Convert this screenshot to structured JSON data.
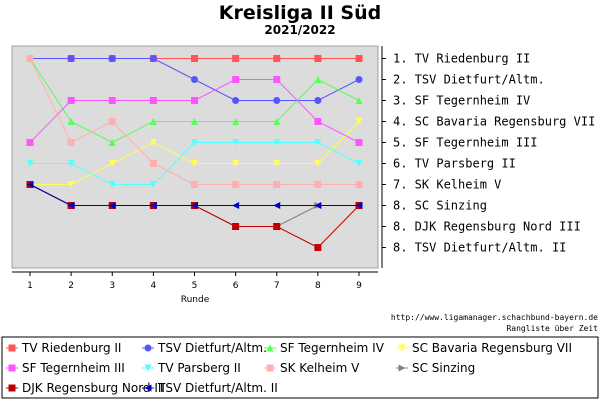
{
  "chart_data": {
    "type": "line",
    "title": "Kreisliga II Süd",
    "subtitle": "2021/2022",
    "xlabel": "Runde",
    "ylabel": "",
    "x": [
      1,
      2,
      3,
      4,
      5,
      6,
      7,
      8,
      9
    ],
    "ylim": [
      1,
      10
    ],
    "y_inverted": true,
    "grid": false,
    "legend_position": "bottom",
    "standings": [
      "1. TV Riedenburg II",
      "2. TSV Dietfurt/Altm.",
      "3. SF Tegernheim IV",
      "4. SC Bavaria Regensburg VII",
      "5. SF Tegernheim III",
      "6. TV Parsberg II",
      "7. SK Kelheim V",
      "8. SC Sinzing",
      "8. DJK Regensburg Nord III",
      "8. TSV Dietfurt/Altm. II"
    ],
    "series": [
      {
        "name": "TV Riedenburg II",
        "color": "#ff5555",
        "marker": "square",
        "values": [
          1,
          1,
          1,
          1,
          1,
          1,
          1,
          1,
          1
        ]
      },
      {
        "name": "TSV Dietfurt/Altm.",
        "color": "#5555ff",
        "marker": "circle",
        "values": [
          1,
          1,
          1,
          1,
          2,
          3,
          3,
          3,
          2
        ]
      },
      {
        "name": "SF Tegernheim IV",
        "color": "#55ff55",
        "marker": "triangle-up",
        "values": [
          1,
          4,
          5,
          4,
          4,
          4,
          4,
          2,
          3
        ]
      },
      {
        "name": "SC Bavaria Regensburg VII",
        "color": "#ffff55",
        "marker": "triangle-down",
        "values": [
          7,
          7,
          6,
          5,
          6,
          6,
          6,
          6,
          4
        ]
      },
      {
        "name": "SF Tegernheim III",
        "color": "#ff55ff",
        "marker": "square",
        "values": [
          5,
          3,
          3,
          3,
          3,
          2,
          2,
          4,
          5
        ]
      },
      {
        "name": "TV Parsberg II",
        "color": "#55ffff",
        "marker": "triangle-down",
        "values": [
          6,
          6,
          7,
          7,
          5,
          5,
          5,
          5,
          6
        ]
      },
      {
        "name": "SK Kelheim V",
        "color": "#ffafaf",
        "marker": "square",
        "values": [
          1,
          5,
          4,
          6,
          7,
          7,
          7,
          7,
          7
        ]
      },
      {
        "name": "SC Sinzing",
        "color": "#808080",
        "marker": "triangle-right",
        "values": [
          7,
          8,
          8,
          8,
          8,
          9,
          9,
          8,
          8
        ]
      },
      {
        "name": "DJK Regensburg Nord III",
        "color": "#c00000",
        "marker": "square",
        "values": [
          7,
          8,
          8,
          8,
          8,
          9,
          9,
          10,
          8
        ]
      },
      {
        "name": "TSV Dietfurt/Altm. II",
        "color": "#0000c0",
        "marker": "triangle-left",
        "values": [
          7,
          8,
          8,
          8,
          8,
          8,
          8,
          8,
          8
        ]
      }
    ]
  },
  "footer": {
    "url": "http://www.ligamanager.schachbund-bayern.de",
    "link": "Rangliste über Zeit"
  }
}
